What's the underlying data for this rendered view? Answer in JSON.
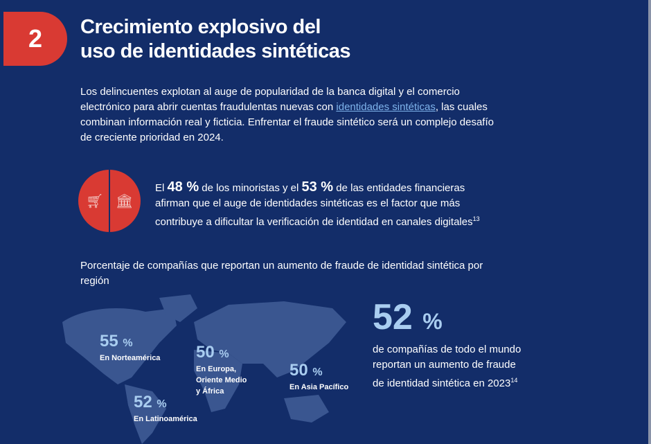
{
  "section_number": "2",
  "title_line1": "Crecimiento explosivo del",
  "title_line2": "uso de identidades sintéticas",
  "intro": {
    "before": "Los delincuentes explotan al auge de popularidad de la banca digital y el comercio electrónico para abrir cuentas fraudulentas nuevas con ",
    "link": "identidades sintéticas",
    "after": ", las cuales combinan información real y ficticia. Enfrentar el fraude sintético será un complejo desafío de creciente prioridad en 2024."
  },
  "stat": {
    "t1": "El ",
    "v1": "48 %",
    "t2": " de los minoristas y el ",
    "v2": "53 %",
    "t3": " de las entidades financieras afirman que el auge de identidades sintéticas es el factor que más contribuye a dificultar la verificación de identidad en canales digitales",
    "ref": "13",
    "retail_share": 48,
    "finance_share": 53
  },
  "subtitle": "Porcentaje de compañías que reportan un aumento de fraude de identidad sintética por región",
  "regions": [
    {
      "value": "55",
      "unit": "%",
      "label": "En Norteamérica"
    },
    {
      "value": "50",
      "unit": "%",
      "label": "En Europa, Oriente Medio y África"
    },
    {
      "value": "50",
      "unit": "%",
      "label": "En Asia Pacífico"
    },
    {
      "value": "52",
      "unit": "%",
      "label": "En Latinoamérica"
    }
  ],
  "global": {
    "value": "52",
    "unit": "%",
    "text": "de compañías de todo el mundo reportan un aumento de fraude de identidad sintética en 2023",
    "ref": "14"
  },
  "colors": {
    "background": "#132d69",
    "accent": "#d93a33",
    "highlight": "#a9cdf0",
    "map": "#3a5690"
  }
}
